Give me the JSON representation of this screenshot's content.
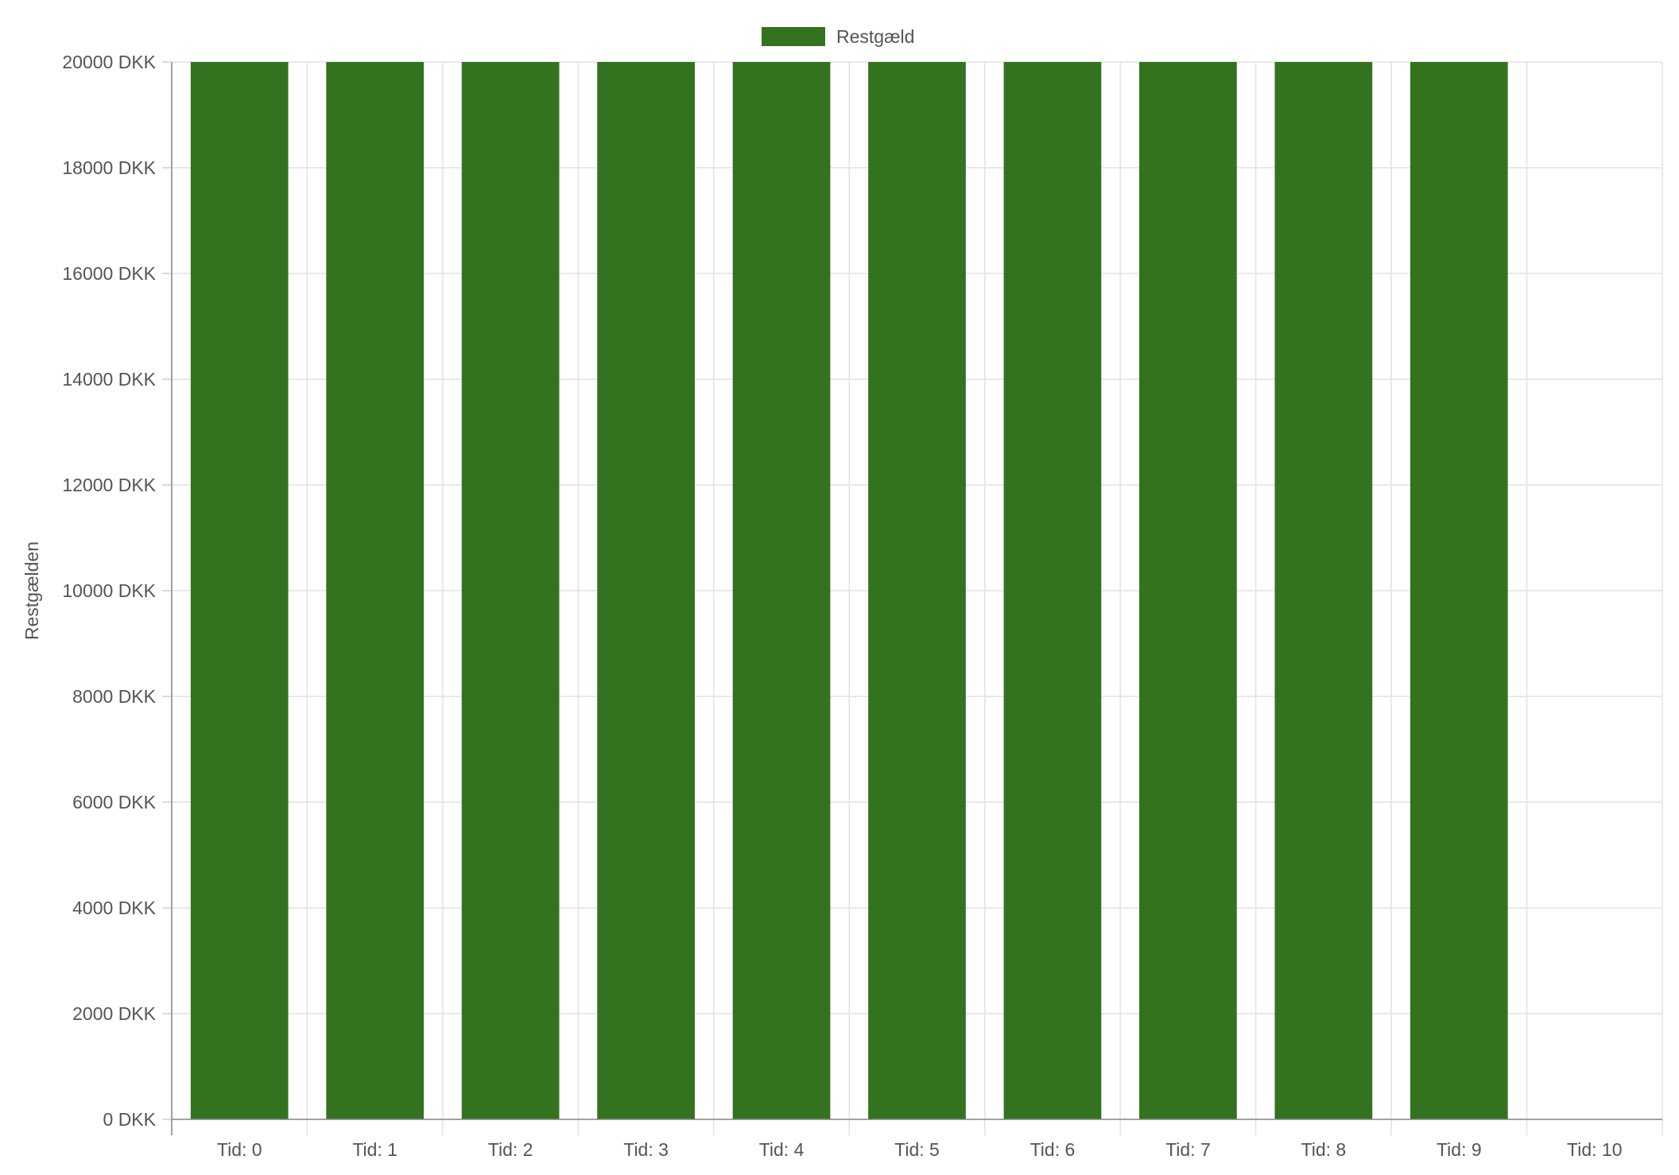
{
  "chart_data": {
    "type": "bar",
    "categories": [
      "Tid: 0",
      "Tid: 1",
      "Tid: 2",
      "Tid: 3",
      "Tid: 4",
      "Tid: 5",
      "Tid: 6",
      "Tid: 7",
      "Tid: 8",
      "Tid: 9",
      "Tid: 10"
    ],
    "series": [
      {
        "name": "Restgæld",
        "color": "#33731f",
        "values": [
          20000,
          20000,
          20000,
          20000,
          20000,
          20000,
          20000,
          20000,
          20000,
          20000,
          0
        ]
      }
    ],
    "title": "",
    "xlabel": "",
    "ylabel": "Restgælden",
    "ylim": [
      0,
      20000
    ],
    "y_ticks": [
      "0 DKK",
      "2000 DKK",
      "4000 DKK",
      "6000 DKK",
      "8000 DKK",
      "10000 DKK",
      "12000 DKK",
      "14000 DKK",
      "16000 DKK",
      "18000 DKK",
      "20000 DKK"
    ],
    "y_tick_values": [
      0,
      2000,
      4000,
      6000,
      8000,
      10000,
      12000,
      14000,
      16000,
      18000,
      20000
    ],
    "grid": true,
    "legend_position": "top-center"
  }
}
